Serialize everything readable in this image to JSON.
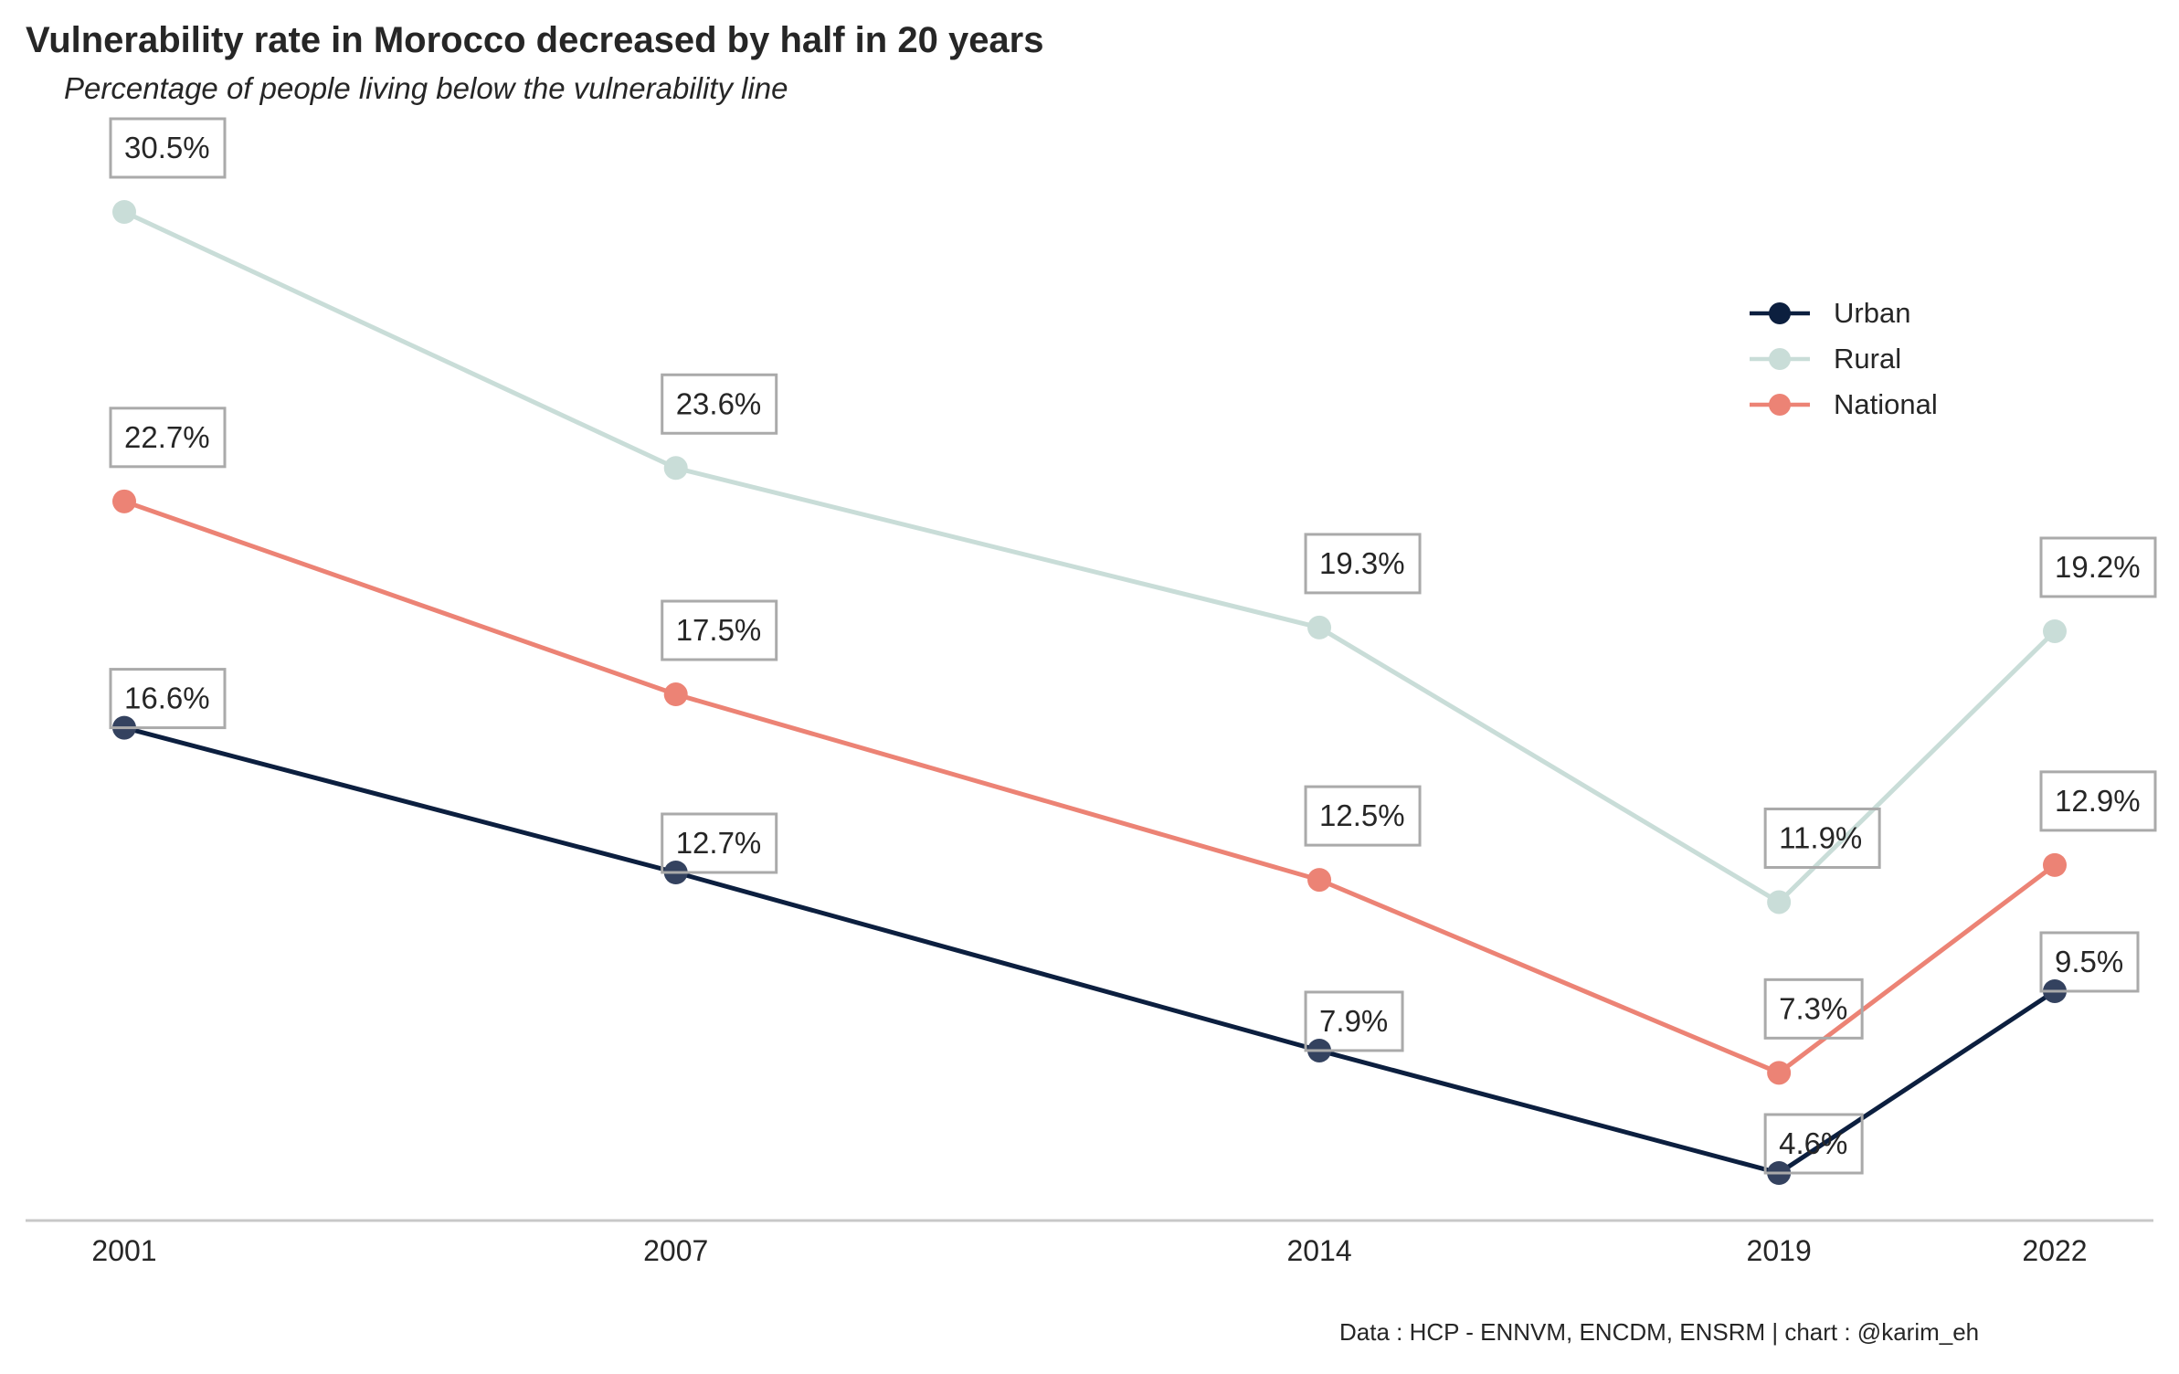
{
  "title": "Vulnerability rate in Morocco decreased by half in 20 years",
  "subtitle": "Percentage of people living below the vulnerability line",
  "source": "Data : HCP - ENNVM, ENCDM, ENSRM | chart : @karim_eh",
  "colors": {
    "urban": "#0c1f3f",
    "urban_marker": "#34425f",
    "rural": "#c9ddd8",
    "national": "#ec8375",
    "axis": "#c8c8c8",
    "label_box": "#aaaaaa",
    "text": "#262626"
  },
  "chart_data": {
    "type": "line",
    "x": [
      2001,
      2007,
      2014,
      2019,
      2022
    ],
    "xticks": [
      "2001",
      "2007",
      "2014",
      "2019",
      "2022"
    ],
    "xlim": [
      2000,
      2023.1
    ],
    "ylim": [
      2,
      32
    ],
    "grid": false,
    "legend_position": "top-right",
    "series": [
      {
        "key": "urban",
        "name": "Urban",
        "values": [
          16.6,
          12.7,
          7.9,
          4.6,
          9.5
        ],
        "labels": [
          "16.6%",
          "12.7%",
          "7.9%",
          "4.6%",
          "9.5%"
        ]
      },
      {
        "key": "rural",
        "name": "Rural",
        "values": [
          30.5,
          23.6,
          19.3,
          11.9,
          19.2
        ],
        "labels": [
          "30.5%",
          "23.6%",
          "19.3%",
          "11.9%",
          "19.2%"
        ]
      },
      {
        "key": "national",
        "name": "National",
        "values": [
          22.7,
          17.5,
          12.5,
          7.3,
          12.9
        ],
        "labels": [
          "22.7%",
          "17.5%",
          "12.5%",
          "7.3%",
          "12.9%"
        ]
      }
    ]
  }
}
